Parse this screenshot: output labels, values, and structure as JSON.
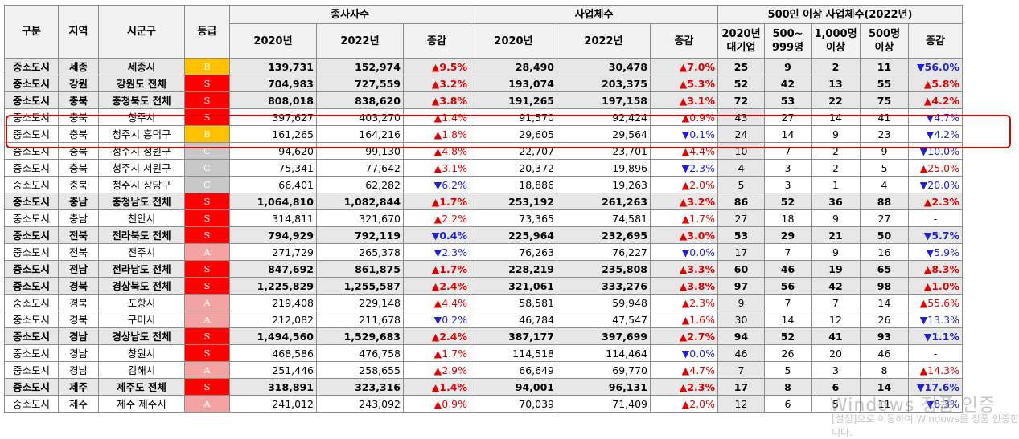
{
  "headers": {
    "gubun": "구분",
    "region": "지역",
    "sigungu": "시군구",
    "grade": "등급",
    "employees_group": "종사자수",
    "business_group": "사업체수",
    "large_group": "500인 이상 사업체수(2022년)",
    "y2020": "2020년",
    "y2022": "2022년",
    "change": "증감",
    "large_cols": [
      "2020년\n대기업",
      "500~\n999명",
      "1,000명\n이상",
      "500명\n이상",
      "증감"
    ]
  },
  "rows": [
    {
      "type": "중소도시",
      "region": "세종",
      "city": "세종시",
      "grade": "B",
      "bold": true,
      "emp2020": "139,731",
      "emp2022": "152,974",
      "empChg": "▲9.5%",
      "empDir": "up",
      "biz2020": "28,490",
      "biz2022": "30,478",
      "bizChg": "▲7.0%",
      "bizDir": "up",
      "l1": "25",
      "l2": "9",
      "l3": "2",
      "l4": "11",
      "lChg": "▼56.0%",
      "lDir": "down"
    },
    {
      "type": "중소도시",
      "region": "강원",
      "city": "강원도 전체",
      "grade": "S",
      "bold": true,
      "emp2020": "704,983",
      "emp2022": "727,559",
      "empChg": "▲3.2%",
      "empDir": "up",
      "biz2020": "193,074",
      "biz2022": "203,375",
      "bizChg": "▲5.3%",
      "bizDir": "up",
      "l1": "52",
      "l2": "42",
      "l3": "13",
      "l4": "55",
      "lChg": "▲5.8%",
      "lDir": "up"
    },
    {
      "type": "중소도시",
      "region": "충북",
      "city": "충청북도 전체",
      "grade": "S",
      "bold": true,
      "emp2020": "808,018",
      "emp2022": "838,620",
      "empChg": "▲3.8%",
      "empDir": "up",
      "biz2020": "191,265",
      "biz2022": "197,158",
      "bizChg": "▲3.1%",
      "bizDir": "up",
      "l1": "72",
      "l2": "53",
      "l3": "22",
      "l4": "75",
      "lChg": "▲4.2%",
      "lDir": "up"
    },
    {
      "type": "중소도시",
      "region": "충북",
      "city": "청주시",
      "grade": "S",
      "bold": false,
      "emp2020": "397,627",
      "emp2022": "403,270",
      "empChg": "▲1.4%",
      "empDir": "up",
      "biz2020": "91,570",
      "biz2022": "92,424",
      "bizChg": "▲0.9%",
      "bizDir": "up",
      "l1": "43",
      "l2": "27",
      "l3": "14",
      "l4": "41",
      "lChg": "▼4.7%",
      "lDir": "down"
    },
    {
      "type": "중소도시",
      "region": "충북",
      "city": "청주시 흥덕구",
      "grade": "B",
      "bold": false,
      "emp2020": "161,265",
      "emp2022": "164,216",
      "empChg": "▲1.8%",
      "empDir": "up",
      "biz2020": "29,605",
      "biz2022": "29,564",
      "bizChg": "▼0.1%",
      "bizDir": "down",
      "l1": "24",
      "l2": "14",
      "l3": "9",
      "l4": "23",
      "lChg": "▼4.2%",
      "lDir": "down"
    },
    {
      "type": "중소도시",
      "region": "충북",
      "city": "청주시 청원구",
      "grade": "C",
      "bold": false,
      "emp2020": "94,620",
      "emp2022": "99,130",
      "empChg": "▲4.8%",
      "empDir": "up",
      "biz2020": "22,707",
      "biz2022": "23,701",
      "bizChg": "▲4.4%",
      "bizDir": "up",
      "l1": "10",
      "l2": "7",
      "l3": "2",
      "l4": "9",
      "lChg": "▼10.0%",
      "lDir": "down"
    },
    {
      "type": "중소도시",
      "region": "충북",
      "city": "청주시 서원구",
      "grade": "C",
      "bold": false,
      "emp2020": "75,341",
      "emp2022": "77,642",
      "empChg": "▲3.1%",
      "empDir": "up",
      "biz2020": "20,372",
      "biz2022": "19,896",
      "bizChg": "▼2.3%",
      "bizDir": "down",
      "l1": "4",
      "l2": "3",
      "l3": "2",
      "l4": "5",
      "lChg": "▲25.0%",
      "lDir": "up"
    },
    {
      "type": "중소도시",
      "region": "충북",
      "city": "청주시 상당구",
      "grade": "C",
      "bold": false,
      "emp2020": "66,401",
      "emp2022": "62,282",
      "empChg": "▼6.2%",
      "empDir": "down",
      "biz2020": "18,886",
      "biz2022": "19,263",
      "bizChg": "▲2.0%",
      "bizDir": "up",
      "l1": "5",
      "l2": "3",
      "l3": "1",
      "l4": "4",
      "lChg": "▼20.0%",
      "lDir": "down"
    },
    {
      "type": "중소도시",
      "region": "충남",
      "city": "충청남도 전체",
      "grade": "S",
      "bold": true,
      "emp2020": "1,064,810",
      "emp2022": "1,082,844",
      "empChg": "▲1.7%",
      "empDir": "up",
      "biz2020": "253,192",
      "biz2022": "261,263",
      "bizChg": "▲3.2%",
      "bizDir": "up",
      "l1": "86",
      "l2": "52",
      "l3": "36",
      "l4": "88",
      "lChg": "▲2.3%",
      "lDir": "up"
    },
    {
      "type": "중소도시",
      "region": "충남",
      "city": "천안시",
      "grade": "S",
      "bold": false,
      "emp2020": "314,811",
      "emp2022": "321,670",
      "empChg": "▲2.2%",
      "empDir": "up",
      "biz2020": "73,365",
      "biz2022": "74,581",
      "bizChg": "▲1.7%",
      "bizDir": "up",
      "l1": "27",
      "l2": "18",
      "l3": "9",
      "l4": "27",
      "lChg": "-",
      "lDir": "flat"
    },
    {
      "type": "중소도시",
      "region": "전북",
      "city": "전라북도 전체",
      "grade": "S",
      "bold": true,
      "emp2020": "794,929",
      "emp2022": "792,119",
      "empChg": "▼0.4%",
      "empDir": "down",
      "biz2020": "225,964",
      "biz2022": "232,695",
      "bizChg": "▲3.0%",
      "bizDir": "up",
      "l1": "53",
      "l2": "29",
      "l3": "21",
      "l4": "50",
      "lChg": "▼5.7%",
      "lDir": "down"
    },
    {
      "type": "중소도시",
      "region": "전북",
      "city": "전주시",
      "grade": "A",
      "bold": false,
      "emp2020": "271,729",
      "emp2022": "265,378",
      "empChg": "▼2.3%",
      "empDir": "down",
      "biz2020": "76,263",
      "biz2022": "76,227",
      "bizChg": "▼0.0%",
      "bizDir": "down",
      "l1": "17",
      "l2": "7",
      "l3": "9",
      "l4": "16",
      "lChg": "▼5.9%",
      "lDir": "down"
    },
    {
      "type": "중소도시",
      "region": "전남",
      "city": "전라남도 전체",
      "grade": "S",
      "bold": true,
      "emp2020": "847,692",
      "emp2022": "861,875",
      "empChg": "▲1.7%",
      "empDir": "up",
      "biz2020": "228,219",
      "biz2022": "235,808",
      "bizChg": "▲3.3%",
      "bizDir": "up",
      "l1": "60",
      "l2": "46",
      "l3": "19",
      "l4": "65",
      "lChg": "▲8.3%",
      "lDir": "up"
    },
    {
      "type": "중소도시",
      "region": "경북",
      "city": "경상북도 전체",
      "grade": "S",
      "bold": true,
      "emp2020": "1,225,829",
      "emp2022": "1,255,587",
      "empChg": "▲2.4%",
      "empDir": "up",
      "biz2020": "321,061",
      "biz2022": "333,276",
      "bizChg": "▲3.8%",
      "bizDir": "up",
      "l1": "97",
      "l2": "56",
      "l3": "42",
      "l4": "98",
      "lChg": "▲1.0%",
      "lDir": "up"
    },
    {
      "type": "중소도시",
      "region": "경북",
      "city": "포항시",
      "grade": "A",
      "bold": false,
      "emp2020": "219,408",
      "emp2022": "229,148",
      "empChg": "▲4.4%",
      "empDir": "up",
      "biz2020": "58,581",
      "biz2022": "59,948",
      "bizChg": "▲2.3%",
      "bizDir": "up",
      "l1": "9",
      "l2": "7",
      "l3": "7",
      "l4": "14",
      "lChg": "▲55.6%",
      "lDir": "up"
    },
    {
      "type": "중소도시",
      "region": "경북",
      "city": "구미시",
      "grade": "A",
      "bold": false,
      "emp2020": "212,082",
      "emp2022": "211,678",
      "empChg": "▼0.2%",
      "empDir": "down",
      "biz2020": "46,784",
      "biz2022": "47,547",
      "bizChg": "▲1.6%",
      "bizDir": "up",
      "l1": "30",
      "l2": "14",
      "l3": "12",
      "l4": "26",
      "lChg": "▼13.3%",
      "lDir": "down"
    },
    {
      "type": "중소도시",
      "region": "경남",
      "city": "경상남도 전체",
      "grade": "S",
      "bold": true,
      "emp2020": "1,494,560",
      "emp2022": "1,529,683",
      "empChg": "▲2.4%",
      "empDir": "up",
      "biz2020": "387,177",
      "biz2022": "397,699",
      "bizChg": "▲2.7%",
      "bizDir": "up",
      "l1": "94",
      "l2": "52",
      "l3": "41",
      "l4": "93",
      "lChg": "▼1.1%",
      "lDir": "down"
    },
    {
      "type": "중소도시",
      "region": "경남",
      "city": "창원시",
      "grade": "S",
      "bold": false,
      "emp2020": "468,586",
      "emp2022": "476,758",
      "empChg": "▲1.7%",
      "empDir": "up",
      "biz2020": "114,518",
      "biz2022": "114,464",
      "bizChg": "▼0.0%",
      "bizDir": "down",
      "l1": "46",
      "l2": "26",
      "l3": "20",
      "l4": "46",
      "lChg": "-",
      "lDir": "flat"
    },
    {
      "type": "중소도시",
      "region": "경남",
      "city": "김해시",
      "grade": "A",
      "bold": false,
      "emp2020": "251,446",
      "emp2022": "258,655",
      "empChg": "▲2.9%",
      "empDir": "up",
      "biz2020": "66,649",
      "biz2022": "69,770",
      "bizChg": "▲4.7%",
      "bizDir": "up",
      "l1": "7",
      "l2": "5",
      "l3": "3",
      "l4": "8",
      "lChg": "▲14.3%",
      "lDir": "up"
    },
    {
      "type": "중소도시",
      "region": "제주",
      "city": "제주도 전체",
      "grade": "S",
      "bold": true,
      "emp2020": "318,891",
      "emp2022": "323,316",
      "empChg": "▲1.4%",
      "empDir": "up",
      "biz2020": "94,001",
      "biz2022": "96,131",
      "bizChg": "▲2.3%",
      "bizDir": "up",
      "l1": "17",
      "l2": "8",
      "l3": "6",
      "l4": "14",
      "lChg": "▼17.6%",
      "lDir": "down"
    },
    {
      "type": "중소도시",
      "region": "제주",
      "city": "제주 제주시",
      "grade": "A",
      "bold": false,
      "emp2020": "241,012",
      "emp2022": "243,092",
      "empChg": "▲0.9%",
      "empDir": "up",
      "biz2020": "70,039",
      "biz2022": "71,409",
      "bizChg": "▲2.0%",
      "bizDir": "up",
      "l1": "12",
      "l2": "6",
      "l3": "5",
      "l4": "11",
      "lChg": "▼8.3%",
      "lDir": "down"
    }
  ],
  "watermark": {
    "line1": "Windows 정품 인증",
    "line2": "[설정]으로 이동하여 Windows를 정품 인증합니다."
  },
  "colors": {
    "up": "#e00000",
    "down": "#1f1fd6",
    "S": "#ff0000",
    "A": "#f4a3a3",
    "B": "#ffc000",
    "C": "#c8c8c8",
    "highlight": "#e00000"
  }
}
